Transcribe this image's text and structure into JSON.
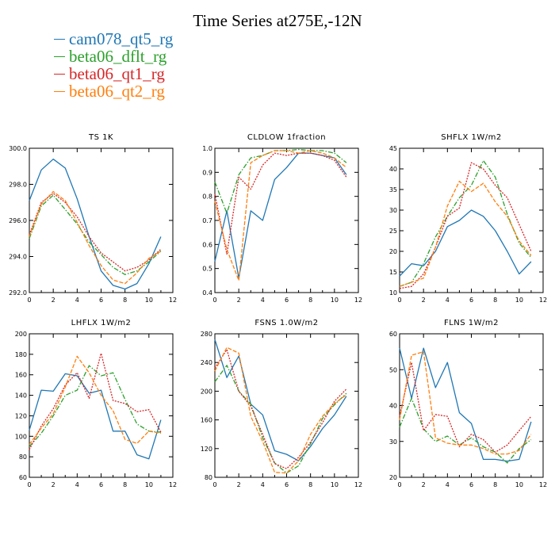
{
  "title": "Time Series at275E,-12N",
  "colors": {
    "cam078_qt5_rg": "#1f77b4",
    "beta06_dflt_rg": "#2ca02c",
    "beta06_qt1_rg": "#d62728",
    "beta06_qt2_rg": "#ff7f0e"
  },
  "legend": [
    {
      "name": "cam078_qt5_rg",
      "color": "#1f77b4"
    },
    {
      "name": "beta06_dflt_rg",
      "color": "#2ca02c"
    },
    {
      "name": "beta06_qt1_rg",
      "color": "#d62728"
    },
    {
      "name": "beta06_qt2_rg",
      "color": "#ff7f0e"
    }
  ],
  "chart_data": [
    {
      "type": "line",
      "title": "TS 1K",
      "x": [
        0,
        1,
        2,
        3,
        4,
        5,
        6,
        7,
        8,
        9,
        10,
        11
      ],
      "xlim": [
        0,
        12
      ],
      "xticks": [
        "0",
        "2",
        "4",
        "6",
        "8",
        "10",
        "12"
      ],
      "ylim": [
        292,
        300
      ],
      "yticks": [
        "292.0",
        "294.0",
        "296.0",
        "298.0",
        "300.0"
      ],
      "series": [
        {
          "name": "cam078_qt5_rg",
          "values": [
            297.1,
            298.8,
            299.4,
            298.9,
            297.2,
            295.1,
            293.2,
            292.4,
            292.2,
            292.5,
            293.6,
            295.1
          ]
        },
        {
          "name": "beta06_dflt_rg",
          "values": [
            295.0,
            296.8,
            297.4,
            296.6,
            295.8,
            294.8,
            294.1,
            293.4,
            293.0,
            293.2,
            293.7,
            294.3
          ]
        },
        {
          "name": "beta06_qt1_rg",
          "values": [
            295.2,
            297.0,
            297.5,
            297.0,
            296.2,
            295.1,
            294.2,
            293.7,
            293.2,
            293.4,
            293.8,
            294.4
          ]
        },
        {
          "name": "beta06_qt2_rg",
          "values": [
            295.1,
            296.9,
            297.6,
            297.1,
            295.9,
            294.6,
            293.5,
            292.7,
            292.5,
            293.1,
            293.9,
            294.3
          ]
        }
      ]
    },
    {
      "type": "line",
      "title": "CLDLOW 1fraction",
      "x": [
        0,
        1,
        2,
        3,
        4,
        5,
        6,
        7,
        8,
        9,
        10,
        11
      ],
      "xlim": [
        0,
        12
      ],
      "xticks": [
        "0",
        "2",
        "4",
        "6",
        "8",
        "10",
        "12"
      ],
      "ylim": [
        0.4,
        1.0
      ],
      "yticks": [
        "0.4",
        "0.5",
        "0.6",
        "0.7",
        "0.8",
        "0.9",
        "1.0"
      ],
      "series": [
        {
          "name": "cam078_qt5_rg",
          "values": [
            0.53,
            0.74,
            0.46,
            0.74,
            0.7,
            0.87,
            0.92,
            0.98,
            0.98,
            0.97,
            0.96,
            0.89
          ]
        },
        {
          "name": "beta06_dflt_rg",
          "values": [
            0.86,
            0.73,
            0.89,
            0.96,
            0.97,
            0.99,
            0.99,
            0.995,
            0.99,
            0.99,
            0.98,
            0.94
          ]
        },
        {
          "name": "beta06_qt1_rg",
          "values": [
            0.81,
            0.56,
            0.88,
            0.83,
            0.93,
            0.98,
            0.97,
            0.98,
            0.98,
            0.97,
            0.95,
            0.88
          ]
        },
        {
          "name": "beta06_qt2_rg",
          "values": [
            0.78,
            0.58,
            0.45,
            0.94,
            0.97,
            0.99,
            0.99,
            0.98,
            0.99,
            0.98,
            0.96,
            0.92
          ]
        }
      ]
    },
    {
      "type": "line",
      "title": "SHFLX 1W/m2",
      "x": [
        0,
        1,
        2,
        3,
        4,
        5,
        6,
        7,
        8,
        9,
        10,
        11
      ],
      "xlim": [
        0,
        12
      ],
      "xticks": [
        "0",
        "2",
        "4",
        "6",
        "8",
        "10",
        "12"
      ],
      "ylim": [
        10,
        45
      ],
      "yticks": [
        "10",
        "15",
        "20",
        "25",
        "30",
        "35",
        "40",
        "45"
      ],
      "series": [
        {
          "name": "cam078_qt5_rg",
          "values": [
            14.0,
            17.0,
            16.5,
            20.0,
            26.0,
            27.5,
            30.0,
            28.5,
            25.0,
            20.0,
            14.5,
            17.5
          ]
        },
        {
          "name": "beta06_dflt_rg",
          "values": [
            11.5,
            12.5,
            17.0,
            23.5,
            28.5,
            33.0,
            36.0,
            42.0,
            38.0,
            29.0,
            22.0,
            18.5
          ]
        },
        {
          "name": "beta06_qt1_rg",
          "values": [
            11.0,
            11.5,
            14.5,
            21.0,
            28.5,
            30.5,
            41.5,
            40.0,
            36.0,
            33.0,
            26.5,
            20.0
          ]
        },
        {
          "name": "beta06_qt2_rg",
          "values": [
            11.5,
            12.5,
            13.5,
            21.0,
            31.0,
            37.0,
            34.5,
            36.5,
            32.0,
            28.5,
            22.5,
            19.0
          ]
        }
      ]
    },
    {
      "type": "line",
      "title": "LHFLX 1W/m2",
      "x": [
        0,
        1,
        2,
        3,
        4,
        5,
        6,
        7,
        8,
        9,
        10,
        11
      ],
      "xlim": [
        0,
        12
      ],
      "xticks": [
        "0",
        "2",
        "4",
        "6",
        "8",
        "10",
        "12"
      ],
      "ylim": [
        60,
        200
      ],
      "yticks": [
        "60",
        "80",
        "100",
        "120",
        "140",
        "160",
        "180",
        "200"
      ],
      "series": [
        {
          "name": "cam078_qt5_rg",
          "values": [
            106,
            145,
            144,
            161,
            159,
            142,
            145,
            105,
            105,
            82,
            78,
            116
          ]
        },
        {
          "name": "beta06_dflt_rg",
          "values": [
            90,
            103,
            120,
            140,
            145,
            169,
            159,
            162,
            136,
            112,
            105,
            104
          ]
        },
        {
          "name": "beta06_qt1_rg",
          "values": [
            87,
            110,
            127,
            150,
            162,
            137,
            181,
            135,
            132,
            124,
            126,
            104
          ]
        },
        {
          "name": "beta06_qt2_rg",
          "values": [
            92,
            108,
            122,
            148,
            178,
            162,
            140,
            125,
            97,
            93,
            105,
            103
          ]
        }
      ]
    },
    {
      "type": "line",
      "title": "FSNS 1.0W/m2",
      "x": [
        0,
        1,
        2,
        3,
        4,
        5,
        6,
        7,
        8,
        9,
        10,
        11
      ],
      "xlim": [
        0,
        12
      ],
      "xticks": [
        "0",
        "2",
        "4",
        "6",
        "8",
        "10",
        "12"
      ],
      "ylim": [
        80,
        280
      ],
      "yticks": [
        "80",
        "120",
        "160",
        "200",
        "240",
        "280"
      ],
      "series": [
        {
          "name": "cam078_qt5_rg",
          "values": [
            272,
            219,
            249,
            182,
            167,
            117,
            112,
            103,
            123,
            148,
            167,
            193
          ]
        },
        {
          "name": "beta06_dflt_rg",
          "values": [
            213,
            236,
            200,
            182,
            135,
            100,
            86,
            96,
            127,
            162,
            181,
            197
          ]
        },
        {
          "name": "beta06_qt1_rg",
          "values": [
            232,
            258,
            200,
            179,
            140,
            99,
            92,
            108,
            129,
            156,
            186,
            203
          ]
        },
        {
          "name": "beta06_qt2_rg",
          "values": [
            228,
            261,
            253,
            165,
            130,
            87,
            86,
            103,
            140,
            165,
            183,
            195
          ]
        }
      ]
    },
    {
      "type": "line",
      "title": "FLNS 1W/m2",
      "x": [
        0,
        1,
        2,
        3,
        4,
        5,
        6,
        7,
        8,
        9,
        10,
        11
      ],
      "xlim": [
        0,
        12
      ],
      "xticks": [
        "0",
        "2",
        "4",
        "6",
        "8",
        "10",
        "12"
      ],
      "ylim": [
        20,
        60
      ],
      "yticks": [
        "20",
        "30",
        "40",
        "50",
        "60"
      ],
      "series": [
        {
          "name": "cam078_qt5_rg",
          "values": [
            56,
            42,
            56,
            45,
            52,
            38,
            35,
            25,
            25,
            24.5,
            25,
            35.5
          ]
        },
        {
          "name": "beta06_dflt_rg",
          "values": [
            34,
            42,
            33.5,
            30,
            31.5,
            29,
            31,
            28.5,
            27,
            24,
            28,
            30.5
          ]
        },
        {
          "name": "beta06_qt1_rg",
          "values": [
            37,
            52,
            33,
            37.5,
            37,
            28.5,
            32,
            30.5,
            27,
            29,
            33,
            37
          ]
        },
        {
          "name": "beta06_qt2_rg",
          "values": [
            36,
            54,
            55,
            31,
            29.5,
            29,
            29,
            28,
            26.5,
            26.5,
            27.5,
            32
          ]
        }
      ]
    }
  ]
}
